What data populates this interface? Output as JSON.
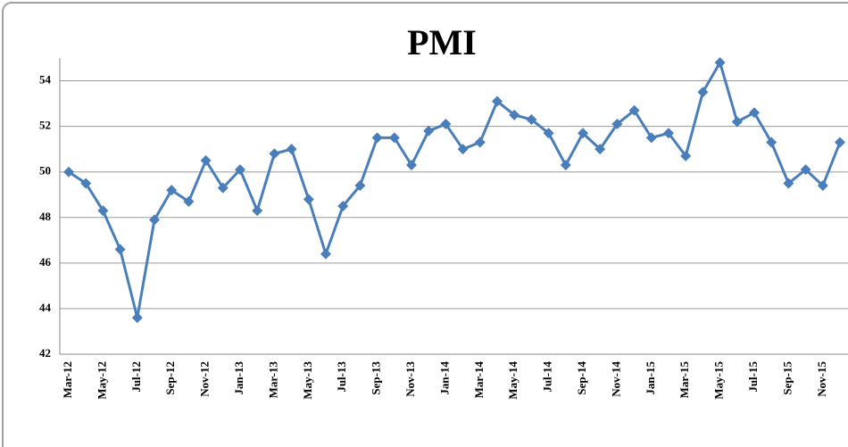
{
  "chart_data": {
    "type": "line",
    "title": "PMI",
    "categories": [
      "Mar-12",
      null,
      "May-12",
      null,
      "Jul-12",
      null,
      "Sep-12",
      null,
      "Nov-12",
      null,
      "Jan-13",
      null,
      "Mar-13",
      null,
      "May-13",
      null,
      "Jul-13",
      null,
      "Sep-13",
      null,
      "Nov-13",
      null,
      "Jan-14",
      null,
      "Mar-14",
      null,
      "May-14",
      null,
      "Jul-14",
      null,
      "Sep-14",
      null,
      "Nov-14",
      null,
      "Jan-15",
      null,
      "Mar-15",
      null,
      "May-15",
      null,
      "Jul-15",
      null,
      "Sep-15",
      null,
      "Nov-15",
      null
    ],
    "series": [
      {
        "name": "PMI",
        "color": "#4a7ebb",
        "values": [
          50.0,
          49.5,
          48.3,
          46.6,
          43.6,
          47.9,
          49.2,
          48.7,
          50.5,
          49.3,
          50.1,
          48.3,
          50.8,
          51.0,
          48.8,
          46.4,
          48.5,
          49.4,
          51.5,
          51.5,
          50.3,
          51.8,
          52.1,
          51.0,
          51.3,
          53.1,
          52.5,
          52.3,
          51.7,
          50.3,
          51.7,
          51.0,
          52.1,
          52.7,
          51.5,
          51.7,
          50.7,
          53.5,
          54.8,
          52.2,
          52.6,
          51.3,
          49.5,
          50.1,
          49.4,
          51.3
        ]
      }
    ],
    "ylim": [
      42,
      55
    ],
    "yticks": [
      42,
      44,
      46,
      48,
      50,
      52,
      54
    ],
    "grid": true
  }
}
